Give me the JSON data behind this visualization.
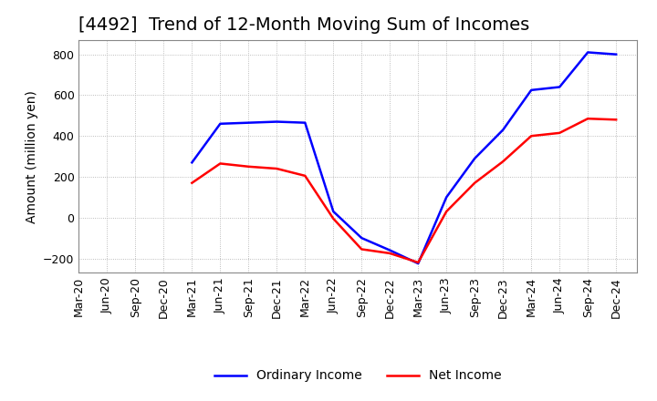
{
  "title": "[4492]  Trend of 12-Month Moving Sum of Incomes",
  "ylabel": "Amount (million yen)",
  "ylim": [
    -270,
    870
  ],
  "yticks": [
    -200,
    0,
    200,
    400,
    600,
    800
  ],
  "ordinary_income": {
    "label": "Ordinary Income",
    "color": "#0000FF",
    "values": [
      null,
      null,
      null,
      null,
      270,
      460,
      465,
      470,
      465,
      30,
      -100,
      -160,
      -225,
      100,
      290,
      430,
      625,
      640,
      810,
      800
    ]
  },
  "net_income": {
    "label": "Net Income",
    "color": "#FF0000",
    "values": [
      null,
      null,
      null,
      null,
      170,
      265,
      250,
      240,
      205,
      -5,
      -155,
      -175,
      -220,
      30,
      170,
      275,
      400,
      415,
      485,
      480
    ]
  },
  "xticks": [
    "Mar-20",
    "Jun-20",
    "Sep-20",
    "Dec-20",
    "Mar-21",
    "Jun-21",
    "Sep-21",
    "Dec-21",
    "Mar-22",
    "Jun-22",
    "Sep-22",
    "Dec-22",
    "Mar-23",
    "Jun-23",
    "Sep-23",
    "Dec-23",
    "Mar-24",
    "Jun-24",
    "Sep-24",
    "Dec-24"
  ],
  "grid_color": "#AAAAAA",
  "background_color": "#FFFFFF",
  "title_fontsize": 14,
  "label_fontsize": 10,
  "tick_fontsize": 9,
  "legend_fontsize": 10
}
